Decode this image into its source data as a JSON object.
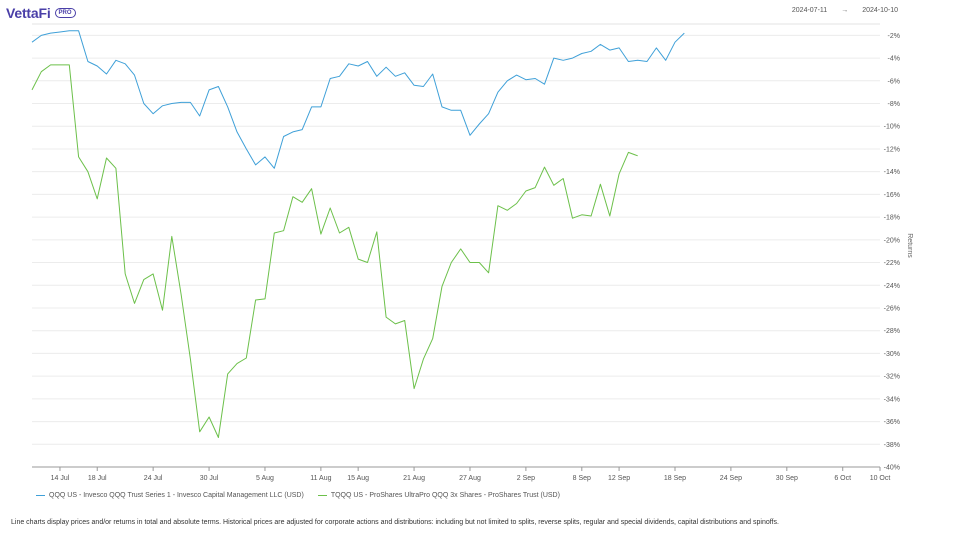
{
  "header": {
    "logo_text": "VettaFi",
    "badge": "PRO",
    "start_date": "2024-07-11",
    "arrow": "→",
    "end_date": "2024-10-10"
  },
  "footnote": "Line charts display prices and/or returns in total and absolute terms. Historical prices are adjusted for corporate actions and distributions: including but not limited to splits, reverse splits, regular and special dividends, capital distributions and spinoffs.",
  "chart_data": {
    "type": "line",
    "ylabel": "Returns",
    "ylim": [
      -40,
      -1
    ],
    "y_ticks": [
      "-2%",
      "-4%",
      "-6%",
      "-8%",
      "-10%",
      "-12%",
      "-14%",
      "-16%",
      "-18%",
      "-20%",
      "-22%",
      "-24%",
      "-26%",
      "-28%",
      "-30%",
      "-32%",
      "-34%",
      "-36%",
      "-38%",
      "-40%"
    ],
    "y_tick_values": [
      -2,
      -4,
      -6,
      -8,
      -10,
      -12,
      -14,
      -16,
      -18,
      -20,
      -22,
      -24,
      -26,
      -28,
      -30,
      -32,
      -34,
      -36,
      -38,
      -40
    ],
    "x_ticks": [
      "14 Jul",
      "18 Jul",
      "24 Jul",
      "30 Jul",
      "5 Aug",
      "11 Aug",
      "15 Aug",
      "21 Aug",
      "27 Aug",
      "2 Sep",
      "8 Sep",
      "12 Sep",
      "18 Sep",
      "24 Sep",
      "30 Sep",
      "6 Oct",
      "10 Oct"
    ],
    "x_tick_dates": [
      "2024-07-14",
      "2024-07-18",
      "2024-07-24",
      "2024-07-30",
      "2024-08-05",
      "2024-08-11",
      "2024-08-15",
      "2024-08-21",
      "2024-08-27",
      "2024-09-02",
      "2024-09-08",
      "2024-09-12",
      "2024-09-18",
      "2024-09-24",
      "2024-09-30",
      "2024-10-06",
      "2024-10-10"
    ],
    "x_range": [
      "2024-07-11",
      "2024-10-10"
    ],
    "legend_position": "bottom-left",
    "series": [
      {
        "name": "QQQ US - Invesco QQQ Trust Series 1 - Invesco Capital Management LLC (USD)",
        "color": "#3fa0d8",
        "points": [
          [
            "2024-07-11",
            -2.6
          ],
          [
            "2024-07-12",
            -2.0
          ],
          [
            "2024-07-13",
            -1.8
          ],
          [
            "2024-07-14",
            -1.7
          ],
          [
            "2024-07-15",
            -1.6
          ],
          [
            "2024-07-16",
            -1.6
          ],
          [
            "2024-07-17",
            -4.3
          ],
          [
            "2024-07-18",
            -4.7
          ],
          [
            "2024-07-19",
            -5.4
          ],
          [
            "2024-07-20",
            -4.2
          ],
          [
            "2024-07-21",
            -4.5
          ],
          [
            "2024-07-22",
            -5.5
          ],
          [
            "2024-07-23",
            -8.0
          ],
          [
            "2024-07-24",
            -8.9
          ],
          [
            "2024-07-25",
            -8.2
          ],
          [
            "2024-07-26",
            -8.0
          ],
          [
            "2024-07-27",
            -7.9
          ],
          [
            "2024-07-28",
            -7.9
          ],
          [
            "2024-07-29",
            -9.1
          ],
          [
            "2024-07-30",
            -6.8
          ],
          [
            "2024-07-31",
            -6.5
          ],
          [
            "2024-08-01",
            -8.3
          ],
          [
            "2024-08-02",
            -10.5
          ],
          [
            "2024-08-03",
            -12.0
          ],
          [
            "2024-08-04",
            -13.4
          ],
          [
            "2024-08-05",
            -12.7
          ],
          [
            "2024-08-06",
            -13.7
          ],
          [
            "2024-08-07",
            -10.9
          ],
          [
            "2024-08-08",
            -10.5
          ],
          [
            "2024-08-09",
            -10.3
          ],
          [
            "2024-08-10",
            -8.3
          ],
          [
            "2024-08-11",
            -8.3
          ],
          [
            "2024-08-12",
            -5.8
          ],
          [
            "2024-08-13",
            -5.6
          ],
          [
            "2024-08-14",
            -4.5
          ],
          [
            "2024-08-15",
            -4.7
          ],
          [
            "2024-08-16",
            -4.3
          ],
          [
            "2024-08-17",
            -5.6
          ],
          [
            "2024-08-18",
            -4.8
          ],
          [
            "2024-08-19",
            -5.6
          ],
          [
            "2024-08-20",
            -5.3
          ],
          [
            "2024-08-21",
            -6.4
          ],
          [
            "2024-08-22",
            -6.5
          ],
          [
            "2024-08-23",
            -5.4
          ],
          [
            "2024-08-24",
            -8.3
          ],
          [
            "2024-08-25",
            -8.6
          ],
          [
            "2024-08-26",
            -8.6
          ],
          [
            "2024-08-27",
            -10.8
          ],
          [
            "2024-08-28",
            -9.8
          ],
          [
            "2024-08-29",
            -8.9
          ],
          [
            "2024-08-30",
            -7.0
          ],
          [
            "2024-08-31",
            -6.0
          ],
          [
            "2024-09-01",
            -5.5
          ],
          [
            "2024-09-02",
            -5.9
          ],
          [
            "2024-09-03",
            -5.8
          ],
          [
            "2024-09-04",
            -6.3
          ],
          [
            "2024-09-05",
            -4.0
          ],
          [
            "2024-09-06",
            -4.2
          ],
          [
            "2024-09-07",
            -4.0
          ],
          [
            "2024-09-08",
            -3.6
          ],
          [
            "2024-09-09",
            -3.4
          ],
          [
            "2024-09-10",
            -2.8
          ],
          [
            "2024-09-11",
            -3.3
          ],
          [
            "2024-09-12",
            -3.1
          ],
          [
            "2024-09-13",
            -4.3
          ],
          [
            "2024-09-14",
            -4.2
          ],
          [
            "2024-09-15",
            -4.3
          ],
          [
            "2024-09-16",
            -3.1
          ],
          [
            "2024-09-17",
            -4.2
          ],
          [
            "2024-09-18",
            -2.6
          ],
          [
            "2024-09-19",
            -1.8
          ]
        ]
      },
      {
        "name": "TQQQ US - ProShares UltraPro QQQ 3x Shares - ProShares Trust (USD)",
        "color": "#6cc04a",
        "points": [
          [
            "2024-07-11",
            -6.8
          ],
          [
            "2024-07-12",
            -5.2
          ],
          [
            "2024-07-13",
            -4.6
          ],
          [
            "2024-07-14",
            -4.6
          ],
          [
            "2024-07-15",
            -4.6
          ],
          [
            "2024-07-16",
            -12.7
          ],
          [
            "2024-07-17",
            -14.0
          ],
          [
            "2024-07-18",
            -16.4
          ],
          [
            "2024-07-19",
            -12.8
          ],
          [
            "2024-07-20",
            -13.7
          ],
          [
            "2024-07-21",
            -23.0
          ],
          [
            "2024-07-22",
            -25.6
          ],
          [
            "2024-07-23",
            -23.5
          ],
          [
            "2024-07-24",
            -23.0
          ],
          [
            "2024-07-25",
            -26.2
          ],
          [
            "2024-07-26",
            -19.7
          ],
          [
            "2024-07-27",
            -24.8
          ],
          [
            "2024-07-28",
            -30.5
          ],
          [
            "2024-07-29",
            -36.9
          ],
          [
            "2024-07-30",
            -35.6
          ],
          [
            "2024-07-31",
            -37.4
          ],
          [
            "2024-08-01",
            -31.8
          ],
          [
            "2024-08-02",
            -30.9
          ],
          [
            "2024-08-03",
            -30.4
          ],
          [
            "2024-08-04",
            -25.3
          ],
          [
            "2024-08-05",
            -25.2
          ],
          [
            "2024-08-06",
            -19.4
          ],
          [
            "2024-08-07",
            -19.2
          ],
          [
            "2024-08-08",
            -16.2
          ],
          [
            "2024-08-09",
            -16.7
          ],
          [
            "2024-08-10",
            -15.5
          ],
          [
            "2024-08-11",
            -19.5
          ],
          [
            "2024-08-12",
            -17.2
          ],
          [
            "2024-08-13",
            -19.4
          ],
          [
            "2024-08-14",
            -18.9
          ],
          [
            "2024-08-15",
            -21.7
          ],
          [
            "2024-08-16",
            -22.0
          ],
          [
            "2024-08-17",
            -19.3
          ],
          [
            "2024-08-18",
            -26.8
          ],
          [
            "2024-08-19",
            -27.4
          ],
          [
            "2024-08-20",
            -27.1
          ],
          [
            "2024-08-21",
            -33.1
          ],
          [
            "2024-08-22",
            -30.5
          ],
          [
            "2024-08-23",
            -28.7
          ],
          [
            "2024-08-24",
            -24.1
          ],
          [
            "2024-08-25",
            -22.0
          ],
          [
            "2024-08-26",
            -20.8
          ],
          [
            "2024-08-27",
            -22.0
          ],
          [
            "2024-08-28",
            -22.0
          ],
          [
            "2024-08-29",
            -22.9
          ],
          [
            "2024-08-30",
            -17.0
          ],
          [
            "2024-08-31",
            -17.4
          ],
          [
            "2024-09-01",
            -16.8
          ],
          [
            "2024-09-02",
            -15.7
          ],
          [
            "2024-09-03",
            -15.4
          ],
          [
            "2024-09-04",
            -13.6
          ],
          [
            "2024-09-05",
            -15.2
          ],
          [
            "2024-09-06",
            -14.6
          ],
          [
            "2024-09-07",
            -18.1
          ],
          [
            "2024-09-08",
            -17.8
          ],
          [
            "2024-09-09",
            -17.9
          ],
          [
            "2024-09-10",
            -15.1
          ],
          [
            "2024-09-11",
            -17.9
          ],
          [
            "2024-09-12",
            -14.2
          ],
          [
            "2024-09-13",
            -12.3
          ],
          [
            "2024-09-14",
            -12.6
          ]
        ]
      }
    ]
  }
}
